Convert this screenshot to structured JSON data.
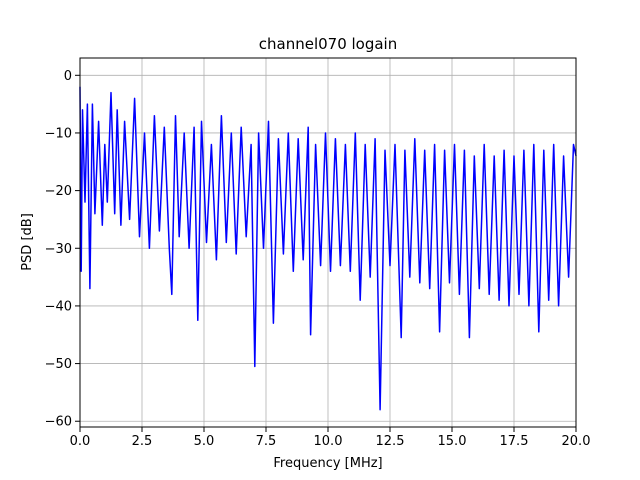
{
  "chart_data": {
    "type": "line",
    "title": "channel070 logain",
    "xlabel": "Frequency [MHz]",
    "ylabel": "PSD [dB]",
    "xlim": [
      0,
      20
    ],
    "ylim": [
      -61,
      3
    ],
    "grid": true,
    "line_color": "#0000ff",
    "x_ticks": [
      0.0,
      2.5,
      5.0,
      7.5,
      10.0,
      12.5,
      15.0,
      17.5,
      20.0
    ],
    "x_tick_labels": [
      "0.0",
      "2.5",
      "5.0",
      "7.5",
      "10.0",
      "12.5",
      "15.0",
      "17.5",
      "20.0"
    ],
    "y_ticks": [
      0,
      -10,
      -20,
      -30,
      -40,
      -50,
      -60
    ],
    "y_tick_labels": [
      "0",
      "−10",
      "−20",
      "−30",
      "−40",
      "−50",
      "−60"
    ],
    "series": [
      {
        "x": [
          0.0,
          0.05,
          0.1,
          0.2,
          0.3,
          0.4,
          0.5,
          0.6,
          0.75,
          0.9,
          1.0,
          1.1,
          1.25,
          1.4,
          1.5,
          1.65,
          1.8,
          2.0,
          2.2,
          2.4,
          2.6,
          2.8,
          3.0,
          3.2,
          3.4,
          3.6,
          3.7,
          3.85,
          4.0,
          4.2,
          4.4,
          4.6,
          4.75,
          4.9,
          5.1,
          5.3,
          5.5,
          5.7,
          5.9,
          6.1,
          6.3,
          6.5,
          6.7,
          6.9,
          7.05,
          7.2,
          7.4,
          7.6,
          7.8,
          8.0,
          8.2,
          8.4,
          8.6,
          8.8,
          9.0,
          9.2,
          9.3,
          9.5,
          9.7,
          9.9,
          10.1,
          10.3,
          10.5,
          10.7,
          10.9,
          11.1,
          11.3,
          11.5,
          11.7,
          11.9,
          12.1,
          12.3,
          12.5,
          12.7,
          12.95,
          13.1,
          13.3,
          13.5,
          13.7,
          13.9,
          14.1,
          14.3,
          14.5,
          14.7,
          14.9,
          15.1,
          15.3,
          15.5,
          15.7,
          15.9,
          16.1,
          16.3,
          16.5,
          16.7,
          16.9,
          17.1,
          17.3,
          17.5,
          17.7,
          17.9,
          18.1,
          18.3,
          18.5,
          18.7,
          18.9,
          19.1,
          19.3,
          19.5,
          19.7,
          19.9,
          20.0
        ],
        "y": [
          -2,
          -34,
          -6,
          -22,
          -5,
          -37,
          -5,
          -24,
          -8,
          -26,
          -12,
          -22,
          -3,
          -24,
          -6,
          -26,
          -8,
          -25,
          -4,
          -28,
          -10,
          -30,
          -7,
          -27,
          -9,
          -30,
          -38,
          -7,
          -28,
          -10,
          -30,
          -9,
          -42.5,
          -8,
          -29,
          -12,
          -32,
          -7,
          -29,
          -10,
          -31,
          -9,
          -28,
          -12,
          -50.5,
          -10,
          -30,
          -8,
          -43,
          -11,
          -31,
          -10,
          -34,
          -11,
          -32,
          -9,
          -45,
          -12,
          -33,
          -10,
          -34,
          -11,
          -33,
          -12,
          -34,
          -10,
          -39,
          -12,
          -35,
          -11,
          -58,
          -13,
          -33,
          -12,
          -45.5,
          -13,
          -35,
          -11,
          -36,
          -13,
          -37,
          -12,
          -44.5,
          -13,
          -36,
          -12,
          -38,
          -13,
          -45.5,
          -14,
          -37,
          -12,
          -38,
          -14,
          -39,
          -13,
          -40,
          -14,
          -38,
          -13,
          -40,
          -12,
          -44.5,
          -13,
          -39,
          -12,
          -40,
          -14,
          -35,
          -12,
          -14
        ]
      }
    ]
  }
}
